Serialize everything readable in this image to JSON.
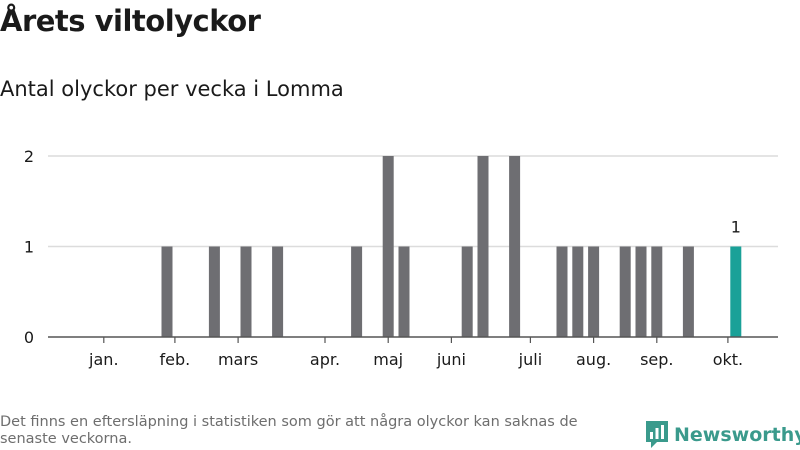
{
  "header": {
    "title": "Årets viltolyckor",
    "subtitle": "Antal olyckor per vecka i Lomma"
  },
  "footer": {
    "note": "Det finns en eftersläpning i statistiken som gör att några olyckor kan saknas de senaste veckorna.",
    "brand": "Newsworthy"
  },
  "colors": {
    "bar": "#6e6e72",
    "highlight": "#1aa198",
    "grid": "#dcdcdc",
    "axis": "#555555",
    "brand": "#3a9a8c"
  },
  "chart_data": {
    "type": "bar",
    "title": "Antal olyckor per vecka i Lomma",
    "xlabel": "",
    "ylabel": "",
    "ylim": [
      0,
      2
    ],
    "yticks": [
      0,
      1,
      2
    ],
    "x": [
      7,
      10,
      12,
      14,
      19,
      21,
      22,
      26,
      27,
      29,
      32,
      33,
      34,
      36,
      37,
      38,
      40,
      43
    ],
    "values": [
      1,
      1,
      1,
      1,
      1,
      2,
      1,
      1,
      2,
      2,
      1,
      1,
      1,
      1,
      1,
      1,
      1,
      1
    ],
    "highlight_index": 17,
    "highlight_label": "1",
    "month_labels": [
      "jan.",
      "feb.",
      "mars",
      "apr.",
      "maj",
      "juni",
      "juli",
      "aug.",
      "sep.",
      "okt."
    ],
    "month_centers": [
      3,
      7.5,
      11.5,
      17,
      21,
      25,
      30,
      34,
      38,
      42.5
    ],
    "week_range": [
      1,
      46
    ]
  }
}
